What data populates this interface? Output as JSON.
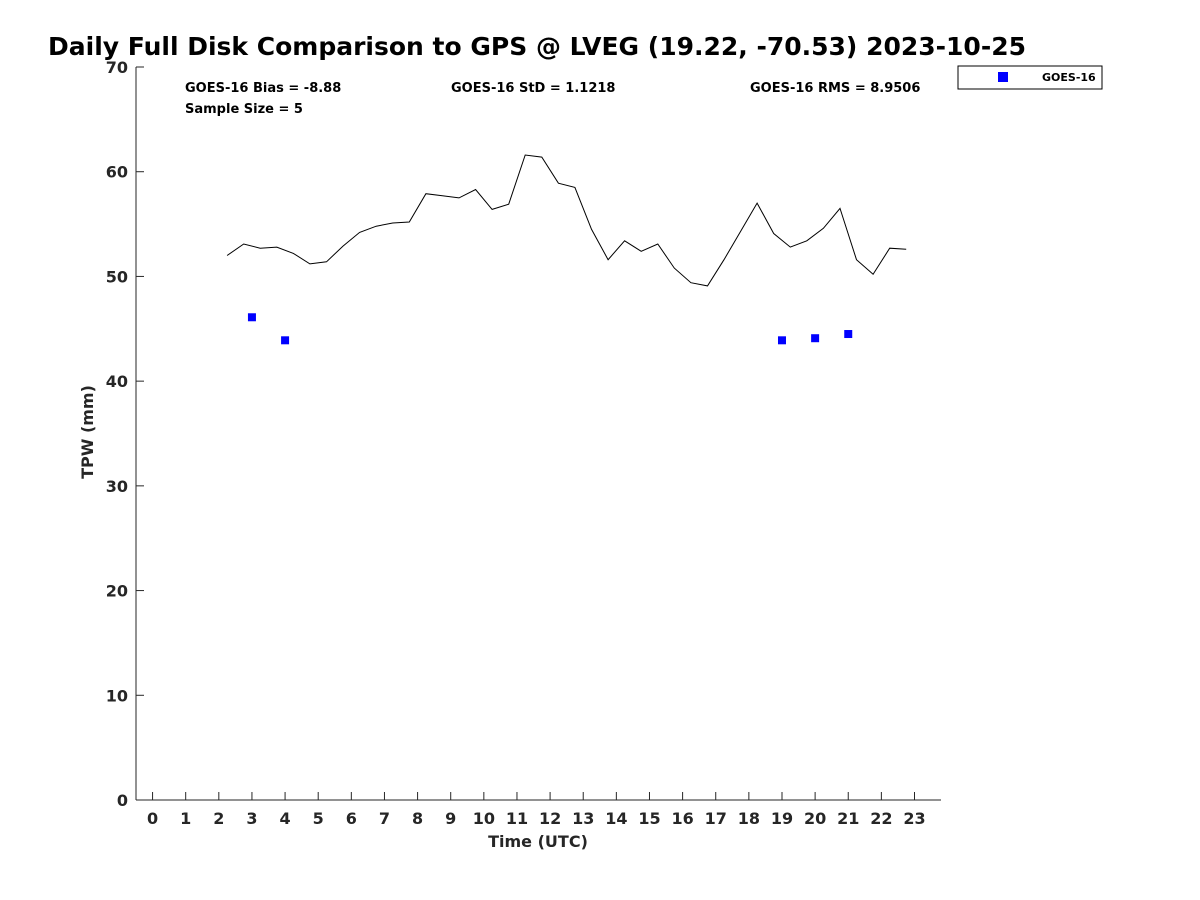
{
  "chart_data": {
    "type": "line",
    "title": "Daily Full Disk Comparison to GPS @ LVEG (19.22, -70.53) 2023-10-25",
    "xlabel": "Time (UTC)",
    "ylabel": "TPW (mm)",
    "xlim": [
      -0.5,
      23.8
    ],
    "ylim": [
      0,
      70
    ],
    "xticks": [
      0,
      1,
      2,
      3,
      4,
      5,
      6,
      7,
      8,
      9,
      10,
      11,
      12,
      13,
      14,
      15,
      16,
      17,
      18,
      19,
      20,
      21,
      22,
      23
    ],
    "yticks": [
      0,
      10,
      20,
      30,
      40,
      50,
      60,
      70
    ],
    "grid": false,
    "legend_position": "outside-top-right",
    "stats": {
      "bias": "GOES-16 Bias = -8.88",
      "std": "GOES-16 StD = 1.1218",
      "rms": "GOES-16 RMS = 8.9506",
      "sample_size": "Sample Size = 5"
    },
    "series": [
      {
        "kind": "line",
        "color": "#000000",
        "x": [
          2.25,
          2.75,
          3.25,
          3.75,
          4.25,
          4.75,
          5.25,
          5.75,
          6.25,
          6.75,
          7.25,
          7.75,
          8.25,
          8.75,
          9.25,
          9.75,
          10.25,
          10.75,
          11.25,
          11.75,
          12.25,
          12.75,
          13.25,
          13.75,
          14.25,
          14.75,
          15.25,
          15.75,
          16.25,
          16.75,
          17.25,
          17.75,
          18.25,
          18.75,
          19.25,
          19.75,
          20.25,
          20.75,
          21.25,
          21.75,
          22.25,
          22.75
        ],
        "y": [
          52.0,
          53.1,
          52.7,
          52.8,
          52.2,
          51.2,
          51.4,
          52.9,
          54.2,
          54.8,
          55.1,
          55.2,
          57.9,
          57.7,
          57.5,
          58.3,
          56.4,
          56.9,
          61.6,
          61.4,
          58.9,
          58.5,
          54.5,
          51.6,
          53.4,
          52.4,
          53.1,
          50.8,
          49.4,
          49.1,
          51.6,
          54.3,
          57.0,
          54.1,
          52.8,
          53.4,
          54.6,
          56.5,
          51.6,
          50.2,
          52.7,
          52.6
        ]
      },
      {
        "kind": "scatter",
        "name": "GOES-16",
        "color": "#0000ff",
        "x": [
          3,
          4,
          19,
          20,
          21
        ],
        "y": [
          46.1,
          43.9,
          43.9,
          44.1,
          44.5
        ]
      }
    ]
  }
}
